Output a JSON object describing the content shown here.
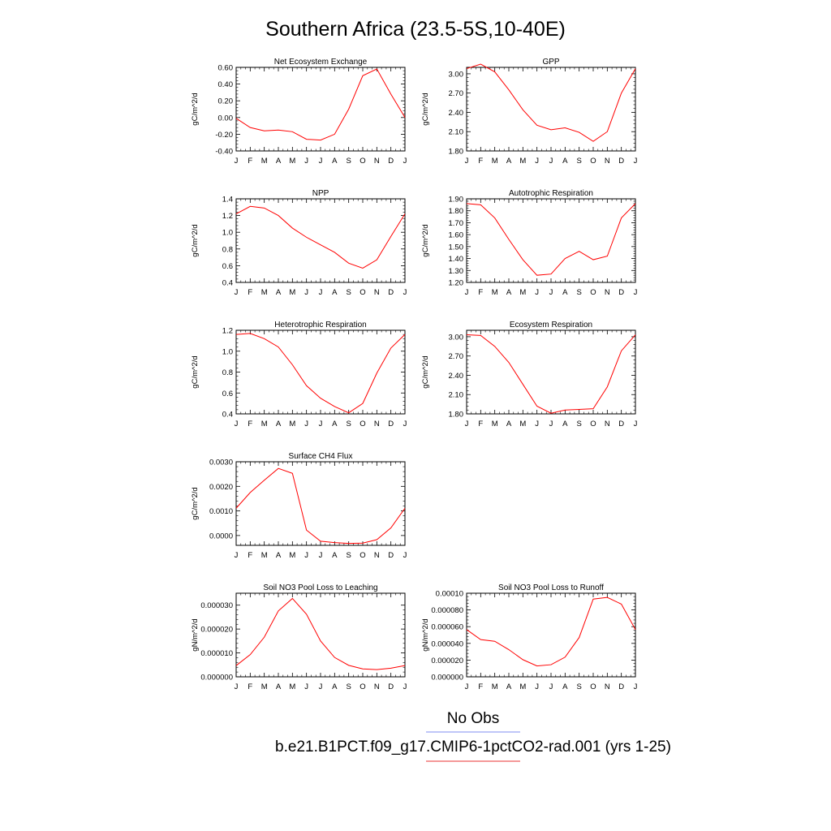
{
  "title": "Southern Africa (23.5-5S,10-40E)",
  "months": [
    "J",
    "F",
    "M",
    "A",
    "M",
    "J",
    "J",
    "A",
    "S",
    "O",
    "N",
    "D",
    "J"
  ],
  "legend": {
    "obs_label": "No Obs",
    "obs_color": "#7f8cf0",
    "model_label": "b.e21.B1PCT.f09_g17.CMIP6-1pctCO2-rad.001 (yrs 1-25)",
    "model_color": "#e83030"
  },
  "chart_data": [
    {
      "type": "line",
      "title": "Net Ecosystem Exchange",
      "ylabel": "gC/m^2/d",
      "ylim": [
        -0.4,
        0.6
      ],
      "yticks": [
        -0.4,
        -0.2,
        0.0,
        0.2,
        0.4,
        0.6
      ],
      "ytick_labels": [
        "-0.40",
        "-0.20",
        "0.00",
        "0.20",
        "0.40",
        "0.60"
      ],
      "series": [
        {
          "color": "#ff0000",
          "values": [
            -0.01,
            -0.12,
            -0.16,
            -0.15,
            -0.17,
            -0.26,
            -0.27,
            -0.2,
            0.1,
            0.5,
            0.58,
            0.28,
            0.0
          ]
        }
      ]
    },
    {
      "type": "line",
      "title": "GPP",
      "ylabel": "gC/m^2/d",
      "ylim": [
        1.8,
        3.1
      ],
      "yticks": [
        1.8,
        2.1,
        2.4,
        2.7,
        3.0
      ],
      "ytick_labels": [
        "1.80",
        "2.10",
        "2.40",
        "2.70",
        "3.00"
      ],
      "series": [
        {
          "color": "#ff0000",
          "values": [
            3.08,
            3.15,
            3.03,
            2.75,
            2.44,
            2.2,
            2.13,
            2.16,
            2.09,
            1.95,
            2.1,
            2.7,
            3.08
          ]
        }
      ]
    },
    {
      "type": "line",
      "title": "NPP",
      "ylabel": "gC/m^2/d",
      "ylim": [
        0.4,
        1.4
      ],
      "yticks": [
        0.4,
        0.6,
        0.8,
        1.0,
        1.2,
        1.4
      ],
      "ytick_labels": [
        "0.4",
        "0.6",
        "0.8",
        "1.0",
        "1.2",
        "1.4"
      ],
      "series": [
        {
          "color": "#ff0000",
          "values": [
            1.22,
            1.31,
            1.29,
            1.2,
            1.05,
            0.94,
            0.85,
            0.76,
            0.63,
            0.57,
            0.67,
            0.95,
            1.22
          ]
        }
      ]
    },
    {
      "type": "line",
      "title": "Autotrophic Respiration",
      "ylabel": "gC/m^2/d",
      "ylim": [
        1.2,
        1.9
      ],
      "yticks": [
        1.2,
        1.3,
        1.4,
        1.5,
        1.6,
        1.7,
        1.8,
        1.9
      ],
      "ytick_labels": [
        "1.20",
        "1.30",
        "1.40",
        "1.50",
        "1.60",
        "1.70",
        "1.80",
        "1.90"
      ],
      "series": [
        {
          "color": "#ff0000",
          "values": [
            1.86,
            1.85,
            1.74,
            1.56,
            1.39,
            1.26,
            1.27,
            1.4,
            1.46,
            1.39,
            1.42,
            1.74,
            1.86
          ]
        }
      ]
    },
    {
      "type": "line",
      "title": "Heterotrophic Respiration",
      "ylabel": "gC/m^2/d",
      "ylim": [
        0.4,
        1.2
      ],
      "yticks": [
        0.4,
        0.6,
        0.8,
        1.0,
        1.2
      ],
      "ytick_labels": [
        "0.4",
        "0.6",
        "0.8",
        "1.0",
        "1.2"
      ],
      "series": [
        {
          "color": "#ff0000",
          "values": [
            1.16,
            1.17,
            1.12,
            1.04,
            0.87,
            0.67,
            0.55,
            0.47,
            0.41,
            0.5,
            0.79,
            1.03,
            1.16
          ]
        }
      ]
    },
    {
      "type": "line",
      "title": "Ecosystem Respiration",
      "ylabel": "gC/m^2/d",
      "ylim": [
        1.8,
        3.1
      ],
      "yticks": [
        1.8,
        2.1,
        2.4,
        2.7,
        3.0
      ],
      "ytick_labels": [
        "1.80",
        "2.10",
        "2.40",
        "2.70",
        "3.00"
      ],
      "series": [
        {
          "color": "#ff0000",
          "values": [
            3.03,
            3.02,
            2.85,
            2.6,
            2.26,
            1.92,
            1.81,
            1.86,
            1.87,
            1.88,
            2.22,
            2.78,
            3.03
          ]
        }
      ]
    },
    {
      "type": "line",
      "title": "Surface CH4 Flux",
      "ylabel": "gC/m^2/d",
      "ylim": [
        -0.0004,
        0.003
      ],
      "yticks": [
        0.0,
        0.001,
        0.002,
        0.003
      ],
      "ytick_labels": [
        "0.0000",
        "0.0010",
        "0.0020",
        "0.0030"
      ],
      "series": [
        {
          "color": "#ff0000",
          "values": [
            0.00111,
            0.00175,
            0.00225,
            0.00273,
            0.00253,
            0.00022,
            -0.00023,
            -0.00029,
            -0.00032,
            -0.00031,
            -0.00017,
            0.00031,
            0.00111
          ]
        }
      ]
    },
    {
      "type": "line",
      "title": "Soil NO3 Pool Loss to Leaching",
      "ylabel": "gN/m^2/d",
      "ylim": [
        0.0,
        3.5e-05
      ],
      "yticks": [
        0.0,
        1e-05,
        2e-05,
        3e-05
      ],
      "ytick_labels": [
        "0.000000",
        "0.000010",
        "0.000020",
        "0.000030"
      ],
      "series": [
        {
          "color": "#ff0000",
          "values": [
            4.7e-06,
            9.3e-06,
            1.66e-05,
            2.76e-05,
            3.28e-05,
            2.62e-05,
            1.5e-05,
            8.1e-06,
            4.8e-06,
            3.3e-06,
            3e-06,
            3.6e-06,
            4.7e-06
          ]
        }
      ]
    },
    {
      "type": "line",
      "title": "Soil NO3 Pool Loss to Runoff",
      "ylabel": "gN/m^2/d",
      "ylim": [
        0.0,
        0.0001
      ],
      "yticks": [
        0.0,
        2e-05,
        4e-05,
        6e-05,
        8e-05,
        0.0001
      ],
      "ytick_labels": [
        "0.000000",
        "0.000020",
        "0.000040",
        "0.000060",
        "0.000080",
        "0.00010"
      ],
      "series": [
        {
          "color": "#ff0000",
          "values": [
            5.65e-05,
            4.45e-05,
            4.25e-05,
            3.25e-05,
            2.05e-05,
            1.3e-05,
            1.45e-05,
            2.35e-05,
            4.7e-05,
            9.3e-05,
            9.5e-05,
            8.7e-05,
            5.65e-05
          ]
        }
      ]
    }
  ]
}
